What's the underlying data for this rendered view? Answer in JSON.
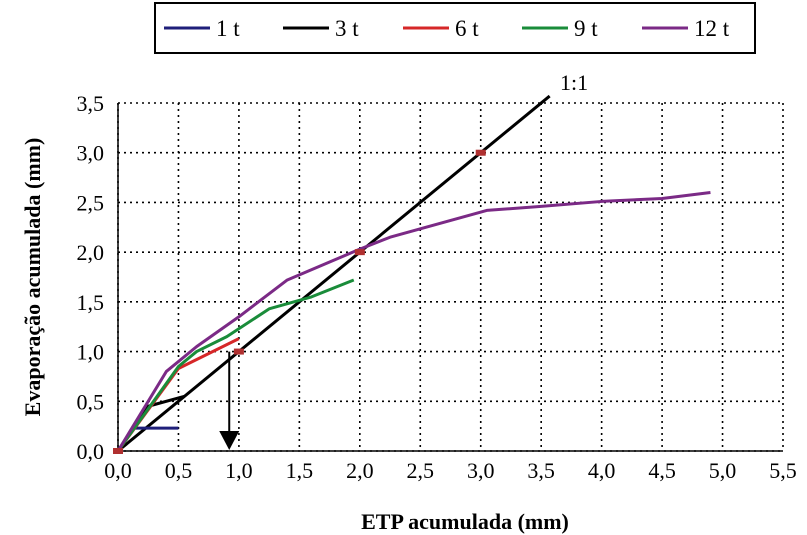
{
  "chart_data": {
    "type": "line",
    "title": "",
    "xlabel": "ETP acumulada (mm)",
    "ylabel": "Evaporação acumulada (mm)",
    "xlim": [
      0,
      5.5
    ],
    "ylim": [
      0,
      3.5
    ],
    "x_ticks": [
      "0,0",
      "0,5",
      "1,0",
      "1,5",
      "2,0",
      "2,5",
      "3,0",
      "3,5",
      "4,0",
      "4,5",
      "5,0",
      "5,5"
    ],
    "y_ticks": [
      "0,0",
      "0,5",
      "1,0",
      "1,5",
      "2,0",
      "2,5",
      "3,0",
      "3,5"
    ],
    "grid": true,
    "legend_position": "top",
    "series": [
      {
        "name": "1 t",
        "color": "#1f1f7a",
        "x": [
          0.0,
          0.12,
          0.5
        ],
        "y": [
          0.0,
          0.23,
          0.23
        ]
      },
      {
        "name": "3 t",
        "color": "#000000",
        "x": [
          0.0,
          0.25,
          0.55
        ],
        "y": [
          0.0,
          0.45,
          0.55
        ]
      },
      {
        "name": "6 t",
        "color": "#d62728",
        "x": [
          0.0,
          0.5,
          1.0
        ],
        "y": [
          0.0,
          0.83,
          1.13
        ]
      },
      {
        "name": "9 t",
        "color": "#1a8c3a",
        "x": [
          0.0,
          0.5,
          0.65,
          0.9,
          1.25,
          1.6,
          1.95
        ],
        "y": [
          0.0,
          0.85,
          1.0,
          1.15,
          1.43,
          1.55,
          1.72
        ]
      },
      {
        "name": "12 t",
        "color": "#7b2a86",
        "x": [
          0.0,
          0.4,
          0.65,
          1.0,
          1.4,
          2.0,
          2.25,
          3.05,
          3.5,
          4.0,
          4.5,
          4.9
        ],
        "y": [
          0.0,
          0.8,
          1.05,
          1.35,
          1.72,
          2.03,
          2.15,
          2.42,
          2.46,
          2.51,
          2.54,
          2.6
        ]
      }
    ],
    "reference_line": {
      "label": "1:1",
      "x": [
        0.0,
        3.57
      ],
      "y": [
        0.0,
        3.57
      ],
      "color": "#000000"
    },
    "markers": {
      "color": "#b03030",
      "x": [
        0.0,
        1.0,
        2.0,
        3.0
      ],
      "y": [
        0.0,
        1.0,
        2.0,
        3.0
      ]
    },
    "arrow": {
      "x": 0.92,
      "y_from": 1.0,
      "y_to": 0.0
    }
  }
}
